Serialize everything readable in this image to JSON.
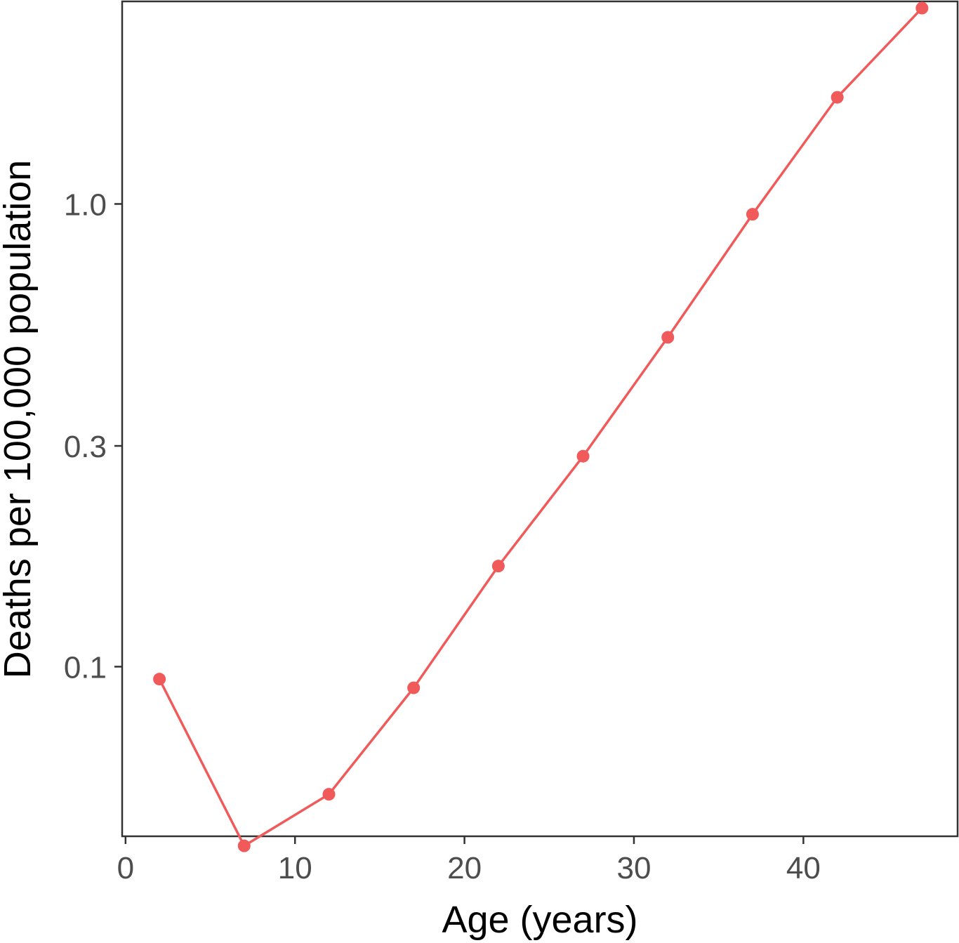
{
  "chart_data": {
    "type": "line",
    "title": "",
    "xlabel": "Age (years)",
    "ylabel": "Deaths per 100,000 population",
    "x_ticks": [
      0,
      10,
      20,
      30,
      40
    ],
    "x_tick_labels": [
      "0",
      "10",
      "20",
      "30",
      "40"
    ],
    "y_scale": "log",
    "y_ticks": [
      0.1,
      0.3,
      1.0
    ],
    "y_tick_labels": [
      "0.1",
      "0.3",
      "1.0"
    ],
    "xlim": [
      -0.2,
      49.1
    ],
    "ylim": [
      0.043,
      2.74
    ],
    "grid": false,
    "legend": "none",
    "series": [
      {
        "color": "#f05a5a",
        "x": [
          2,
          7,
          12,
          17,
          22,
          27,
          32,
          37,
          42,
          47
        ],
        "y": [
          0.094,
          0.041,
          0.053,
          0.09,
          0.165,
          0.285,
          0.515,
          0.95,
          1.7,
          2.65
        ]
      }
    ]
  }
}
